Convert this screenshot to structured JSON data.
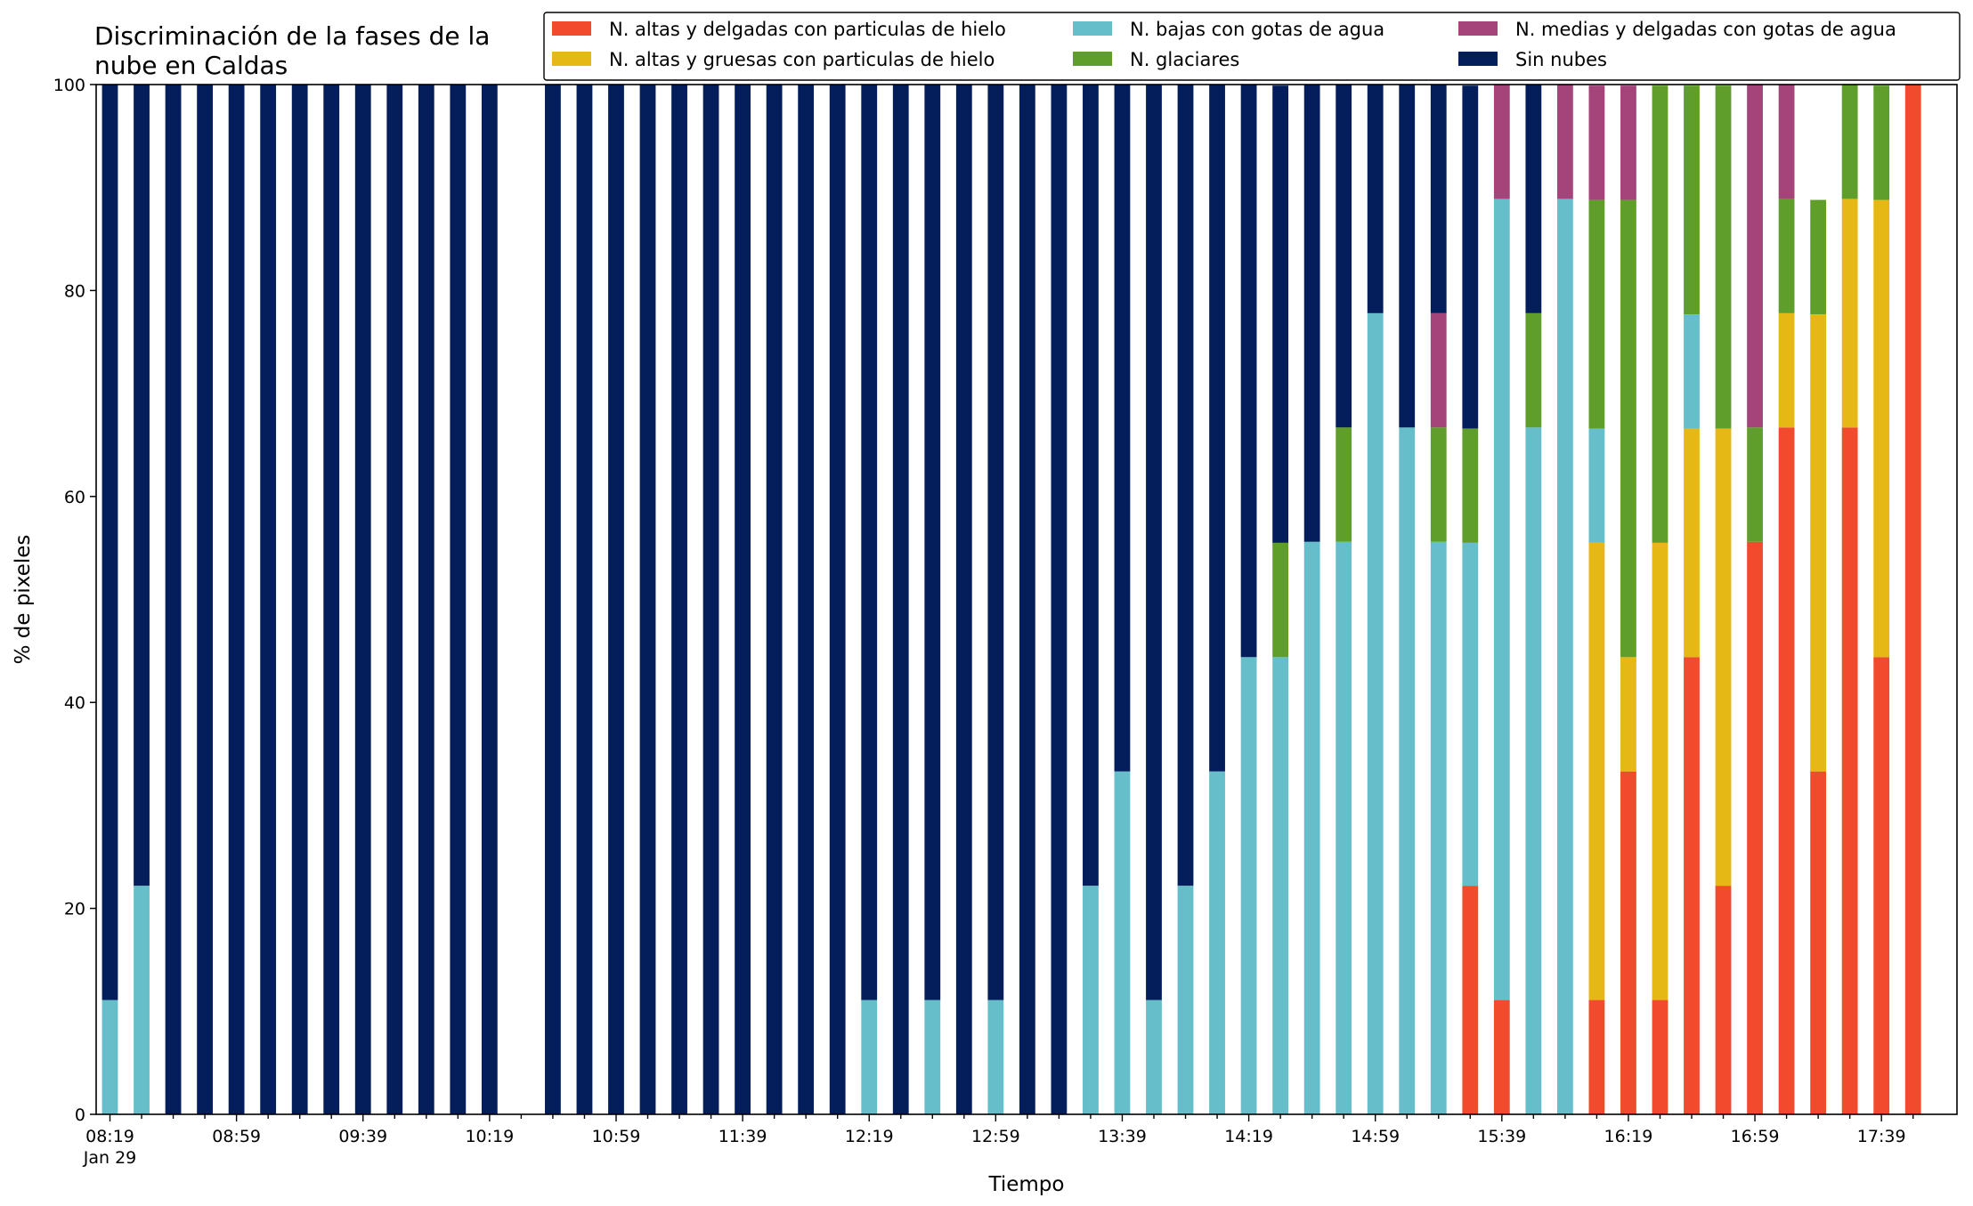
{
  "chart_data": {
    "type": "bar",
    "stacked": true,
    "title_lines": [
      "Discriminación de la fases de la",
      "nube en Caldas"
    ],
    "xlabel": "Tiempo",
    "ylabel": "% de pixeles",
    "ylim": [
      0,
      100
    ],
    "yticks": [
      "0",
      "20",
      "40",
      "60",
      "80",
      "100"
    ],
    "grid": false,
    "legend_position": "top-right",
    "categories": [
      "08:19",
      "08:29",
      "08:39",
      "08:49",
      "08:59",
      "09:09",
      "09:19",
      "09:29",
      "09:39",
      "09:49",
      "09:59",
      "10:09",
      "10:19",
      "10:29",
      "10:39",
      "10:49",
      "10:59",
      "11:09",
      "11:19",
      "11:29",
      "11:39",
      "11:49",
      "11:59",
      "12:09",
      "12:19",
      "12:29",
      "12:39",
      "12:49",
      "12:59",
      "13:09",
      "13:19",
      "13:29",
      "13:39",
      "13:49",
      "13:59",
      "14:09",
      "14:19",
      "14:29",
      "14:39",
      "14:49",
      "14:59",
      "15:09",
      "15:19",
      "15:29",
      "15:39",
      "15:49",
      "15:59",
      "16:09",
      "16:19",
      "16:29",
      "16:39",
      "16:49",
      "16:59",
      "17:09",
      "17:19",
      "17:29",
      "17:39",
      "17:49"
    ],
    "xtick_labels": [
      "08:19",
      "08:59",
      "09:39",
      "10:19",
      "10:59",
      "11:39",
      "12:19",
      "12:59",
      "13:39",
      "14:19",
      "14:59",
      "15:39",
      "16:19",
      "16:59",
      "17:39"
    ],
    "xtick_sublabel": "Jan 29",
    "series": [
      {
        "name": "N. altas y delgadas con particulas de hielo",
        "color": "#ef4b2c",
        "values": [
          0,
          0,
          0,
          0,
          0,
          0,
          0,
          0,
          0,
          0,
          0,
          0,
          0,
          0,
          0,
          0,
          0,
          0,
          0,
          0,
          0,
          0,
          0,
          0,
          0,
          0,
          0,
          0,
          0,
          0,
          0,
          0,
          0,
          0,
          0,
          0,
          0,
          0,
          0,
          0,
          0,
          0,
          0,
          22.2,
          11.1,
          0,
          0,
          11.1,
          33.3,
          11.1,
          44.4,
          22.2,
          55.6,
          66.7,
          33.3,
          66.7,
          44.4,
          100
        ]
      },
      {
        "name": "N. altas y gruesas con particulas de hielo",
        "color": "#e6b815",
        "values": [
          0,
          0,
          0,
          0,
          0,
          0,
          0,
          0,
          0,
          0,
          0,
          0,
          0,
          0,
          0,
          0,
          0,
          0,
          0,
          0,
          0,
          0,
          0,
          0,
          0,
          0,
          0,
          0,
          0,
          0,
          0,
          0,
          0,
          0,
          0,
          0,
          0,
          0,
          0,
          0,
          0,
          0,
          0,
          0,
          0,
          0,
          0,
          44.4,
          11.1,
          44.4,
          22.2,
          44.4,
          0,
          11.1,
          44.4,
          22.2,
          44.4,
          0
        ]
      },
      {
        "name": "N. bajas con gotas de agua",
        "color": "#65bec9",
        "values": [
          11.1,
          22.2,
          0,
          0,
          0,
          0,
          0,
          0,
          0,
          0,
          0,
          0,
          0,
          0,
          0,
          0,
          0,
          0,
          0,
          0,
          0,
          0,
          0,
          0,
          11.1,
          0,
          11.1,
          0,
          11.1,
          0,
          0,
          22.2,
          33.3,
          11.1,
          22.2,
          33.3,
          44.4,
          44.4,
          55.6,
          55.6,
          77.8,
          66.7,
          55.6,
          33.3,
          77.8,
          66.7,
          88.9,
          11.1,
          0,
          0,
          11.1,
          0,
          0,
          0,
          0,
          0,
          0,
          0
        ]
      },
      {
        "name": "N. glaciares",
        "color": "#5f9e2a",
        "values": [
          0,
          0,
          0,
          0,
          0,
          0,
          0,
          0,
          0,
          0,
          0,
          0,
          0,
          0,
          0,
          0,
          0,
          0,
          0,
          0,
          0,
          0,
          0,
          0,
          0,
          0,
          0,
          0,
          0,
          0,
          0,
          0,
          0,
          0,
          0,
          0,
          0,
          11.1,
          0,
          11.1,
          0,
          0,
          11.1,
          11.1,
          0,
          11.1,
          0,
          22.2,
          44.4,
          44.4,
          22.2,
          33.3,
          11.1,
          11.1,
          11.1,
          11.1,
          11.1,
          0
        ]
      },
      {
        "name": "N. medias y delgadas con gotas de agua",
        "color": "#a4447a",
        "values": [
          0,
          0,
          0,
          0,
          0,
          0,
          0,
          0,
          0,
          0,
          0,
          0,
          0,
          0,
          0,
          0,
          0,
          0,
          0,
          0,
          0,
          0,
          0,
          0,
          0,
          0,
          0,
          0,
          0,
          0,
          0,
          0,
          0,
          0,
          0,
          0,
          0,
          0,
          0,
          0,
          0,
          0,
          11.1,
          0,
          11.1,
          0,
          11.1,
          11.1,
          11.1,
          0,
          0,
          0,
          33.3,
          11.1,
          0,
          0,
          0,
          0
        ]
      },
      {
        "name": "Sin nubes",
        "color": "#041e5c",
        "values": [
          88.9,
          77.8,
          100,
          100,
          100,
          100,
          100,
          100,
          100,
          100,
          100,
          100,
          100,
          0,
          100,
          100,
          100,
          100,
          100,
          100,
          100,
          100,
          100,
          100,
          88.9,
          100,
          88.9,
          100,
          88.9,
          100,
          100,
          77.8,
          66.7,
          88.9,
          77.8,
          66.7,
          55.6,
          44.4,
          44.4,
          33.3,
          22.2,
          33.3,
          22.2,
          33.3,
          0,
          22.2,
          0,
          0,
          0,
          0,
          0,
          0,
          0,
          0,
          0,
          0,
          0,
          0
        ]
      }
    ]
  }
}
